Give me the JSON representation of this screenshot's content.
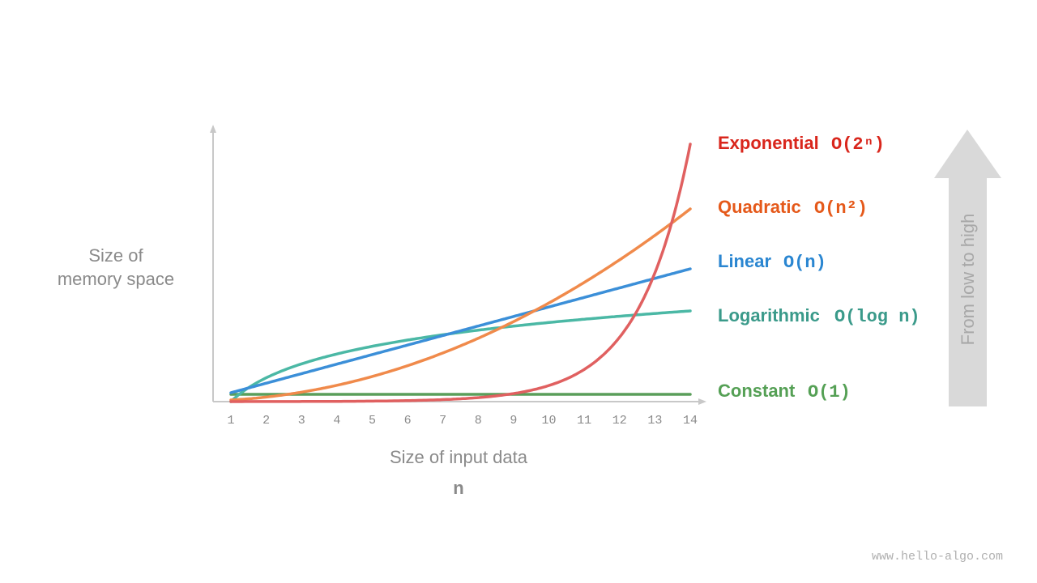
{
  "axes": {
    "y_label": [
      "Size of",
      "memory space"
    ],
    "x_label": "Size of input data",
    "x_variable": "n",
    "x_ticks": [
      1,
      2,
      3,
      4,
      5,
      6,
      7,
      8,
      9,
      10,
      11,
      12,
      13,
      14
    ]
  },
  "curves": [
    {
      "name": "Exponential",
      "notation": "O(2ⁿ)"
    },
    {
      "name": "Quadratic",
      "notation": "O(n²)"
    },
    {
      "name": "Linear",
      "notation": "O(n)"
    },
    {
      "name": "Logarithmic",
      "notation": "O(log n)"
    },
    {
      "name": "Constant",
      "notation": "O(1)"
    }
  ],
  "arrow_label": "From  low to high",
  "watermark": "www.hello-algo.com"
}
